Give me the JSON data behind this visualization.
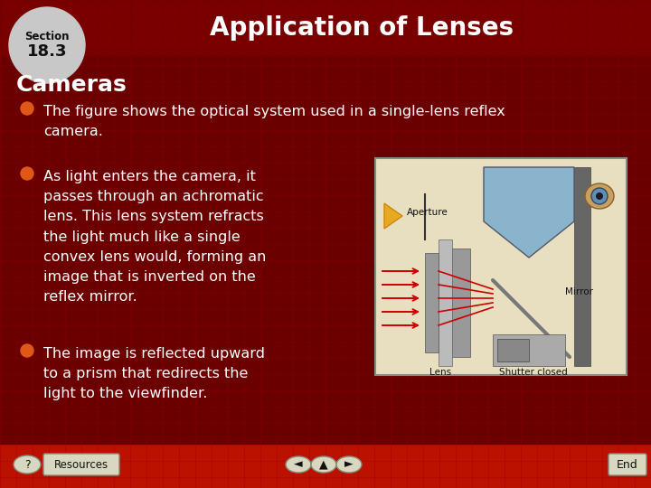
{
  "title": "Application of Lenses",
  "section_label": "Section",
  "section_number": "18.3",
  "subtitle": "Cameras",
  "bullet1": "The figure shows the optical system used in a single-lens reflex\ncamera.",
  "bullet2": "As light enters the camera, it\npasses through an achromatic\nlens. This lens system refracts\nthe light much like a single\nconvex lens would, forming an\nimage that is inverted on the\nreflex mirror.",
  "bullet3": "The image is reflected upward\nto a prism that redirects the\nlight to the viewfinder.",
  "bg_color": "#6b0000",
  "header_bg": "#7a0000",
  "header_text_color": "#ffffff",
  "section_circle_color": "#c8c8c8",
  "section_text_color": "#111111",
  "subtitle_color": "#ffffff",
  "bullet_color": "#ffffff",
  "bullet_dot_color": "#e05818",
  "footer_bg": "#bb1100",
  "grid_color": "#880000",
  "title_fontsize": 20,
  "subtitle_fontsize": 15,
  "bullet_fontsize": 11.5,
  "diagram_bg": "#e8dfc0",
  "diagram_border": "#888888"
}
